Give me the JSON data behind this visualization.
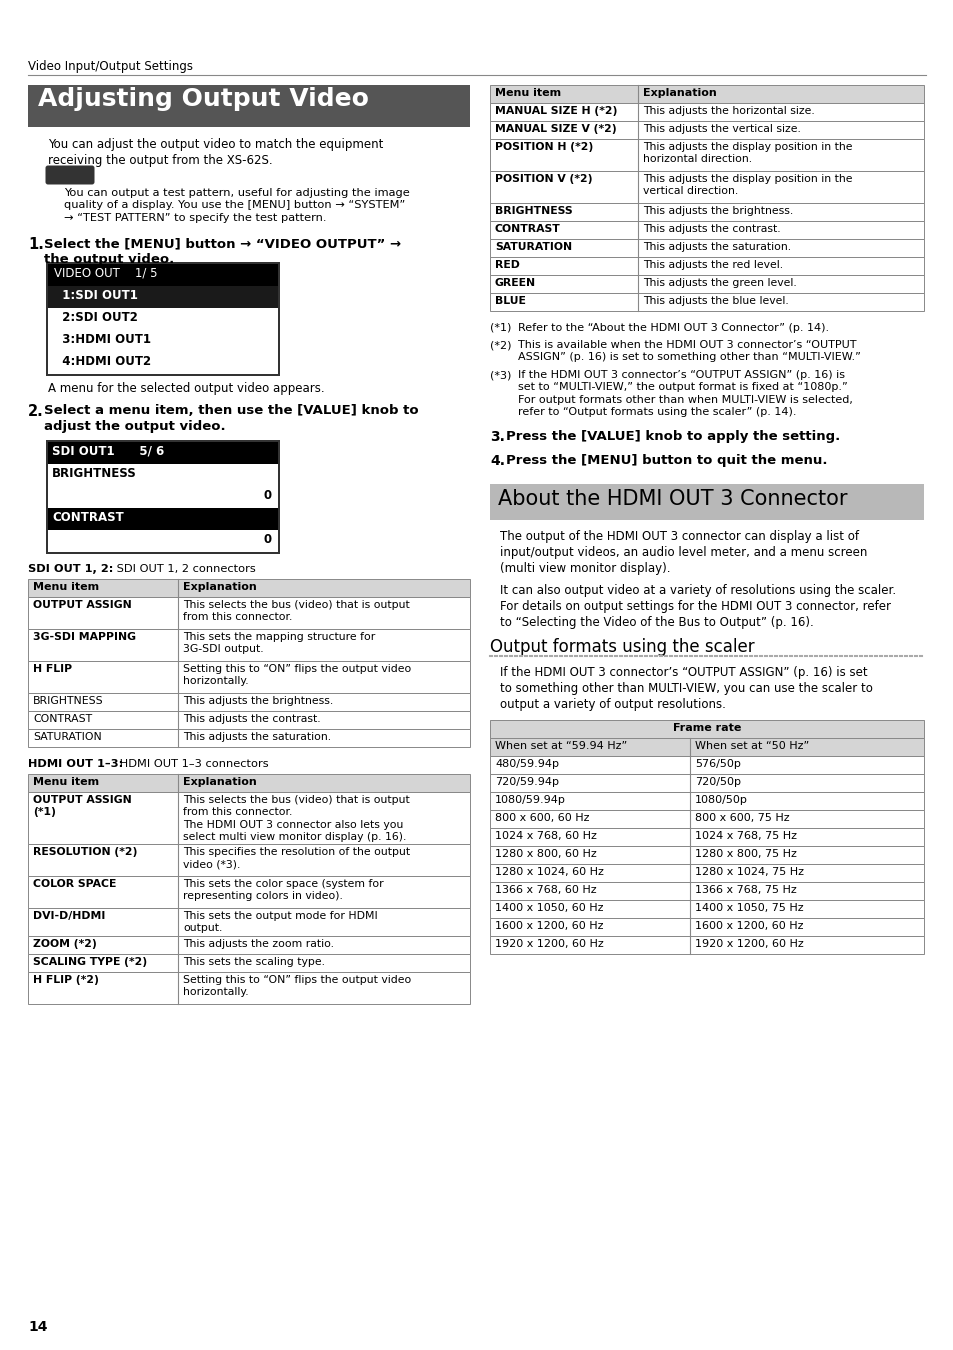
{
  "page_header": "Video Input/Output Settings",
  "section1_title": "Adjusting Output Video",
  "section1_bg": "#555555",
  "section2_bg": "#b8b8b8",
  "bg_color": "#ffffff",
  "page_number": "14",
  "sdi_table_rows": [
    [
      "OUTPUT ASSIGN",
      "This selects the bus (video) that is output\nfrom this connector."
    ],
    [
      "3G-SDI MAPPING",
      "This sets the mapping structure for\n3G-SDI output."
    ],
    [
      "H FLIP",
      "Setting this to “ON” flips the output video\nhorizontally."
    ],
    [
      "BRIGHTNESS",
      "This adjusts the brightness."
    ],
    [
      "CONTRAST",
      "This adjusts the contrast."
    ],
    [
      "SATURATION",
      "This adjusts the saturation."
    ]
  ],
  "hdmi_table_rows": [
    [
      "OUTPUT ASSIGN\n(*1)",
      "This selects the bus (video) that is output\nfrom this connector.\nThe HDMI OUT 3 connector also lets you\nselect multi view monitor display (p. 16)."
    ],
    [
      "RESOLUTION (*2)",
      "This specifies the resolution of the output\nvideo (*3)."
    ],
    [
      "COLOR SPACE",
      "This sets the color space (system for\nrepresenting colors in video)."
    ],
    [
      "DVI-D/HDMI",
      "This sets the output mode for HDMI\noutput."
    ],
    [
      "ZOOM (*2)",
      "This adjusts the zoom ratio."
    ],
    [
      "SCALING TYPE (*2)",
      "This sets the scaling type."
    ],
    [
      "H FLIP (*2)",
      "Setting this to “ON” flips the output video\nhorizontally."
    ]
  ],
  "right_table_rows": [
    [
      "MANUAL SIZE H (*2)",
      "This adjusts the horizontal size."
    ],
    [
      "MANUAL SIZE V (*2)",
      "This adjusts the vertical size."
    ],
    [
      "POSITION H (*2)",
      "This adjusts the display position in the\nhorizontal direction."
    ],
    [
      "POSITION V (*2)",
      "This adjusts the display position in the\nvertical direction."
    ],
    [
      "BRIGHTNESS",
      "This adjusts the brightness."
    ],
    [
      "CONTRAST",
      "This adjusts the contrast."
    ],
    [
      "SATURATION",
      "This adjusts the saturation."
    ],
    [
      "RED",
      "This adjusts the red level."
    ],
    [
      "GREEN",
      "This adjusts the green level."
    ],
    [
      "BLUE",
      "This adjusts the blue level."
    ]
  ],
  "footnotes": [
    [
      "(*1)",
      "Refer to the “About the HDMI OUT 3 Connector” (p. 14)."
    ],
    [
      "(*2)",
      "This is available when the HDMI OUT 3 connector’s “OUTPUT\nASSIGN” (p. 16) is set to something other than “MULTI-VIEW.”"
    ],
    [
      "(*3)",
      "If the HDMI OUT 3 connector’s “OUTPUT ASSIGN” (p. 16) is\nset to “MULTI-VIEW,” the output format is fixed at “1080p.”\nFor output formats other than when MULTI-VIEW is selected,\nrefer to “Output formats using the scaler” (p. 14)."
    ]
  ],
  "section3_title": "Output formats using the scaler",
  "scaler_table_rows": [
    [
      "480/59.94p",
      "576/50p"
    ],
    [
      "720/59.94p",
      "720/50p"
    ],
    [
      "1080/59.94p",
      "1080/50p"
    ],
    [
      "800 x 600, 60 Hz",
      "800 x 600, 75 Hz"
    ],
    [
      "1024 x 768, 60 Hz",
      "1024 x 768, 75 Hz"
    ],
    [
      "1280 x 800, 60 Hz",
      "1280 x 800, 75 Hz"
    ],
    [
      "1280 x 1024, 60 Hz",
      "1280 x 1024, 75 Hz"
    ],
    [
      "1366 x 768, 60 Hz",
      "1366 x 768, 75 Hz"
    ],
    [
      "1400 x 1050, 60 Hz",
      "1400 x 1050, 75 Hz"
    ],
    [
      "1600 x 1200, 60 Hz",
      "1600 x 1200, 60 Hz"
    ],
    [
      "1920 x 1200, 60 Hz",
      "1920 x 1200, 60 Hz"
    ]
  ]
}
